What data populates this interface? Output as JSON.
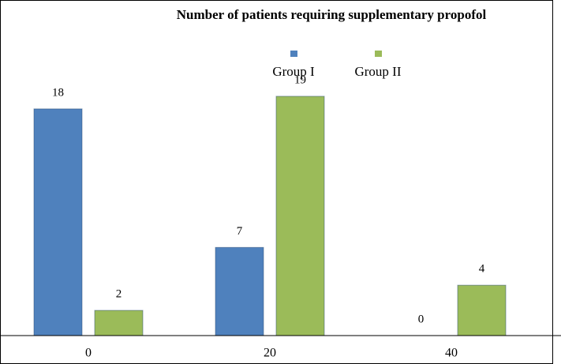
{
  "chart_data": {
    "type": "bar",
    "title": "Number of patients requiring supplementary propofol",
    "categories": [
      "0",
      "20",
      "40"
    ],
    "series": [
      {
        "name": "Group I",
        "color": "#4f81bd",
        "values": [
          18,
          7,
          0
        ]
      },
      {
        "name": "Group II",
        "color": "#9bbb59",
        "values": [
          2,
          19,
          4
        ]
      }
    ],
    "ylim": [
      0,
      20
    ],
    "legend": "top"
  }
}
